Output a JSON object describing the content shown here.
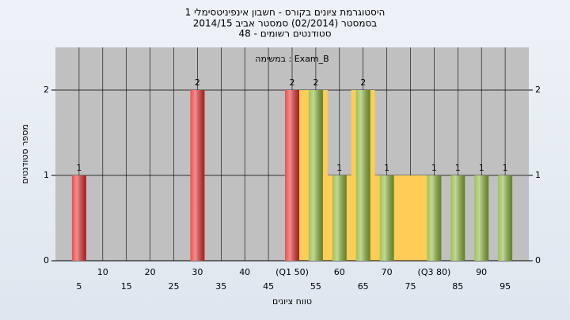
{
  "chart_data": {
    "type": "bar",
    "title": "היסטוגרמת ציונים בקורס - חשבון אינפיניטסימלי 1",
    "subtitle": "בסמסטר  (02/2014)  סמסטר אביב 2014/15",
    "subtitle2": "סטודנטים רשומים - 48",
    "annotation": "במשימה : Exam_B",
    "x_label": "טווח ציונים",
    "y_label": "מספר סטודנטים",
    "x": [
      5,
      30,
      50,
      55,
      60,
      65,
      70,
      80,
      85,
      90,
      95
    ],
    "values": [
      1,
      2,
      2,
      2,
      1,
      2,
      1,
      1,
      1,
      1,
      1
    ],
    "colors": [
      "#e8302f",
      "#e8302f",
      "#e8302f",
      "#8db83c",
      "#8db83c",
      "#8db83c",
      "#8db83c",
      "#8db83c",
      "#8db83c",
      "#8db83c",
      "#8db83c"
    ],
    "band": {
      "from": 50,
      "to": 80,
      "color": "#ffcc55"
    },
    "xlim": [
      0,
      100
    ],
    "xticks": [
      5,
      10,
      15,
      20,
      25,
      30,
      35,
      40,
      45,
      {
        "value": 50,
        "label": "(Q1 50)"
      },
      55,
      60,
      65,
      70,
      75,
      {
        "value": 80,
        "label": "(Q3 80)"
      },
      85,
      90,
      95
    ],
    "ylim": [
      0,
      2.5
    ],
    "yticks": [
      0,
      1,
      2
    ],
    "grid": true
  }
}
